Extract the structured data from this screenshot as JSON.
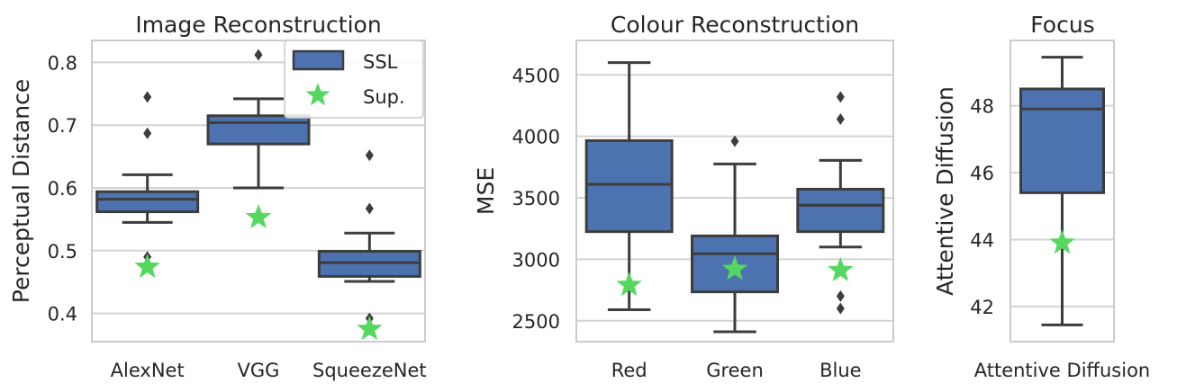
{
  "chart_data": [
    {
      "type": "box",
      "title": "Image Reconstruction",
      "xlabel": "",
      "ylabel": "Perceptual Distance",
      "ylim": [
        0.355,
        0.835
      ],
      "yticks": [
        "0.4",
        "0.5",
        "0.6",
        "0.7",
        "0.8"
      ],
      "ytick_values": [
        0.4,
        0.5,
        0.6,
        0.7,
        0.8
      ],
      "categories": [
        "AlexNet",
        "VGG",
        "SqueezeNet"
      ],
      "box_color": "#4c72b0",
      "star_color": "#55d760",
      "boxes": [
        {
          "wlo": 0.545,
          "q1": 0.562,
          "med": 0.582,
          "q3": 0.594,
          "whi": 0.621,
          "outliers": [
            0.745,
            0.687,
            0.49
          ],
          "sup": 0.474
        },
        {
          "wlo": 0.6,
          "q1": 0.67,
          "med": 0.704,
          "q3": 0.715,
          "whi": 0.742,
          "outliers": [
            0.812
          ],
          "sup": 0.553
        },
        {
          "wlo": 0.451,
          "q1": 0.459,
          "med": 0.481,
          "q3": 0.499,
          "whi": 0.528,
          "outliers": [
            0.652,
            0.567,
            0.392
          ],
          "sup": 0.375
        }
      ],
      "legend": {
        "entries": [
          "SSL",
          "Sup."
        ],
        "placement": "upper right"
      }
    },
    {
      "type": "box",
      "title": "Colour Reconstruction",
      "xlabel": "",
      "ylabel": "MSE",
      "ylim": [
        2330,
        4780
      ],
      "yticks": [
        "2500",
        "3000",
        "3500",
        "4000",
        "4500"
      ],
      "ytick_values": [
        2500,
        3000,
        3500,
        4000,
        4500
      ],
      "categories": [
        "Red",
        "Green",
        "Blue"
      ],
      "box_color": "#4c72b0",
      "star_color": "#55d760",
      "boxes": [
        {
          "wlo": 2590,
          "q1": 3225,
          "med": 3610,
          "q3": 3965,
          "whi": 4600,
          "outliers": [],
          "sup": 2790
        },
        {
          "wlo": 2410,
          "q1": 2735,
          "med": 3045,
          "q3": 3190,
          "whi": 3775,
          "outliers": [
            3960
          ],
          "sup": 2920
        },
        {
          "wlo": 3100,
          "q1": 3225,
          "med": 3440,
          "q3": 3570,
          "whi": 3805,
          "outliers": [
            4320,
            4140,
            2700,
            2600
          ],
          "sup": 2910
        }
      ]
    },
    {
      "type": "box",
      "title": "Focus",
      "xlabel": "",
      "ylabel": "Attentive Diffusion",
      "ylim": [
        40.95,
        49.95
      ],
      "yticks": [
        "42",
        "44",
        "46",
        "48"
      ],
      "ytick_values": [
        42,
        44,
        46,
        48
      ],
      "categories": [
        "Attentive Diffusion"
      ],
      "box_color": "#4c72b0",
      "star_color": "#55d760",
      "boxes": [
        {
          "wlo": 41.45,
          "q1": 45.4,
          "med": 47.9,
          "q3": 48.5,
          "whi": 49.45,
          "outliers": [],
          "sup": 43.9
        }
      ]
    }
  ]
}
